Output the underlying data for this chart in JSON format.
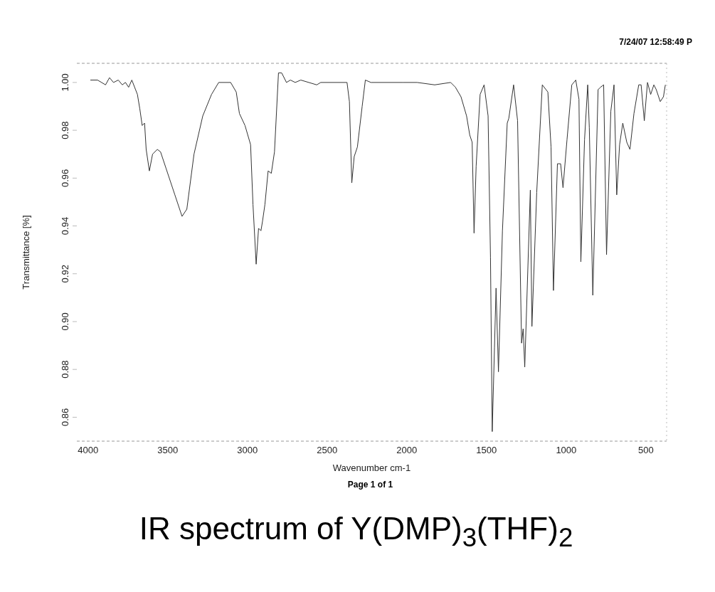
{
  "chart_data": {
    "type": "line",
    "title": "IR spectrum of Y(DMP)$_{3}$(THF)$_{2}$",
    "xlabel": "Wavenumber cm-1",
    "ylabel": "Transmittance [%]",
    "annotations": [
      "7/24/07 12:58:49 P",
      "Page 1 of 1"
    ],
    "xlim": [
      4070,
      370
    ],
    "xticks": [
      4000,
      3500,
      3000,
      2500,
      2000,
      1500,
      1000,
      500
    ],
    "ylim": [
      0.85,
      1.008
    ],
    "yticks": [
      0.86,
      0.88,
      {
        "value": 0.9,
        "label": "0.90"
      },
      0.92,
      0.94,
      0.96,
      0.98,
      {
        "value": 1,
        "label": "1.00"
      }
    ],
    "marker": "none",
    "line_style": "solid",
    "series": [
      {
        "color": "#333333",
        "x": [
          3985,
          3940,
          3890,
          3865,
          3840,
          3810,
          3785,
          3765,
          3745,
          3725,
          3690,
          3675,
          3660,
          3645,
          3635,
          3615,
          3595,
          3565,
          3545,
          3510,
          3455,
          3410,
          3380,
          3335,
          3280,
          3225,
          3180,
          3105,
          3070,
          3050,
          3015,
          2980,
          2965,
          2945,
          2930,
          2915,
          2905,
          2890,
          2870,
          2850,
          2830,
          2805,
          2785,
          2755,
          2730,
          2700,
          2665,
          2565,
          2540,
          2375,
          2360,
          2345,
          2330,
          2310,
          2280,
          2260,
          2225,
          2025,
          1935,
          1825,
          1725,
          1695,
          1660,
          1625,
          1605,
          1590,
          1578,
          1565,
          1540,
          1515,
          1490,
          1475,
          1464,
          1450,
          1440,
          1425,
          1400,
          1370,
          1360,
          1330,
          1305,
          1280,
          1270,
          1260,
          1225,
          1215,
          1185,
          1150,
          1115,
          1095,
          1080,
          1055,
          1035,
          1020,
          995,
          965,
          940,
          920,
          908,
          885,
          865,
          855,
          833,
          800,
          785,
          765,
          747,
          720,
          700,
          683,
          665,
          645,
          620,
          600,
          575,
          545,
          530,
          510,
          490,
          470,
          450,
          435,
          410,
          390,
          378
        ],
        "values": [
          1.001,
          1.001,
          0.999,
          1.002,
          1.0,
          1.001,
          0.999,
          1.0,
          0.998,
          1.001,
          0.995,
          0.989,
          0.982,
          0.983,
          0.972,
          0.963,
          0.97,
          0.972,
          0.971,
          0.964,
          0.953,
          0.944,
          0.947,
          0.97,
          0.986,
          0.995,
          1.0,
          1.0,
          0.996,
          0.987,
          0.982,
          0.974,
          0.949,
          0.924,
          0.939,
          0.938,
          0.942,
          0.949,
          0.963,
          0.962,
          0.971,
          1.004,
          1.004,
          1.0,
          1.001,
          1.0,
          1.001,
          0.999,
          1.0,
          1.0,
          0.992,
          0.958,
          0.969,
          0.973,
          0.99,
          1.001,
          1.0,
          1.0,
          1.0,
          0.999,
          1.0,
          0.998,
          0.994,
          0.986,
          0.978,
          0.975,
          0.937,
          0.965,
          0.995,
          0.999,
          0.986,
          0.927,
          0.854,
          0.889,
          0.914,
          0.879,
          0.938,
          0.983,
          0.985,
          0.999,
          0.984,
          0.891,
          0.897,
          0.881,
          0.955,
          0.898,
          0.954,
          0.999,
          0.996,
          0.973,
          0.913,
          0.966,
          0.966,
          0.956,
          0.976,
          0.999,
          1.001,
          0.993,
          0.925,
          0.976,
          0.999,
          0.981,
          0.911,
          0.997,
          0.998,
          0.999,
          0.928,
          0.988,
          0.999,
          0.953,
          0.974,
          0.983,
          0.975,
          0.972,
          0.987,
          0.999,
          0.999,
          0.984,
          1.0,
          0.995,
          0.999,
          0.997,
          0.992,
          0.994,
          0.999
        ]
      }
    ]
  }
}
